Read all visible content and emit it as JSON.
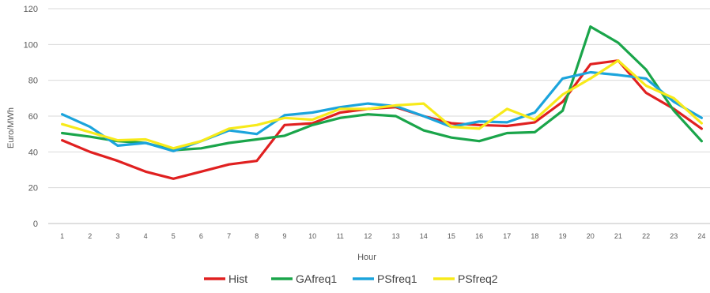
{
  "chart_data": {
    "type": "line",
    "title": "",
    "xlabel": "Hour",
    "ylabel": "Euro/MWh",
    "ylim": [
      0,
      120
    ],
    "yticks": [
      0,
      20,
      40,
      60,
      80,
      100,
      120
    ],
    "grid": true,
    "legend_position": "bottom",
    "categories": [
      "1",
      "2",
      "3",
      "4",
      "5",
      "6",
      "7",
      "8",
      "9",
      "10",
      "11",
      "12",
      "13",
      "14",
      "15",
      "16",
      "17",
      "18",
      "19",
      "20",
      "21",
      "22",
      "23",
      "24"
    ],
    "series": [
      {
        "name": "Hist",
        "color": "#e02020",
        "values": [
          46.5,
          40,
          35,
          29,
          25,
          29,
          33,
          35,
          55,
          56,
          62,
          64,
          65,
          60,
          56,
          55,
          54.5,
          56.5,
          68,
          89,
          91,
          73,
          64,
          53
        ]
      },
      {
        "name": "GAfreq1",
        "color": "#1aa54a",
        "values": [
          50.5,
          48.5,
          46,
          45,
          41,
          42,
          45,
          47,
          49,
          55,
          59,
          61,
          60,
          52,
          48,
          46,
          50.5,
          51,
          63,
          110,
          101,
          86,
          63,
          46
        ]
      },
      {
        "name": "PSfreq1",
        "color": "#1ba4dc",
        "values": [
          61,
          54,
          43.5,
          45,
          40.5,
          46,
          52,
          50,
          60.5,
          62,
          65,
          67,
          65.5,
          60,
          54,
          57,
          56.5,
          62,
          81,
          84.5,
          83,
          81,
          68,
          59
        ]
      },
      {
        "name": "PSfreq2",
        "color": "#f7ea1a",
        "values": [
          55.5,
          51,
          46.5,
          47,
          42,
          46,
          53,
          55,
          59,
          58,
          64,
          64,
          66,
          67,
          54,
          53,
          64,
          58,
          72,
          81,
          91,
          77,
          70,
          56
        ]
      }
    ]
  }
}
